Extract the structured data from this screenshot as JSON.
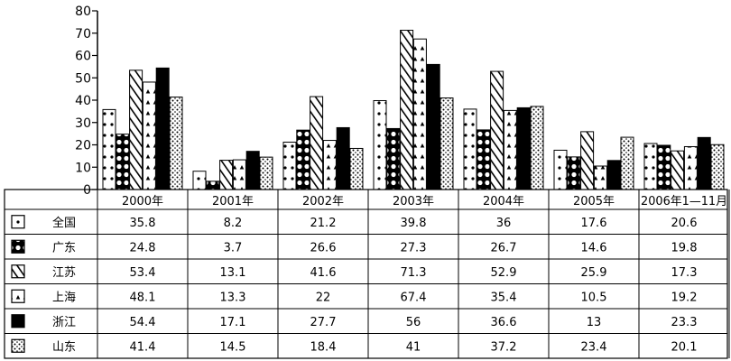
{
  "chart_data": {
    "type": "bar",
    "categories": [
      "2000年",
      "2001年",
      "2002年",
      "2003年",
      "2004年",
      "2005年",
      "2006年1—11月"
    ],
    "ylim": [
      0,
      80
    ],
    "yticks": [
      0,
      10,
      20,
      30,
      40,
      50,
      60,
      70,
      80
    ],
    "grid": false,
    "legend": "data-table-below",
    "series": [
      {
        "name": "全国",
        "pattern": "dots-sparse",
        "color": "#000000",
        "values": [
          35.8,
          8.2,
          21.2,
          39.8,
          36,
          17.6,
          20.6
        ]
      },
      {
        "name": "广东",
        "pattern": "big-dots",
        "color": "#000000",
        "values": [
          24.8,
          3.7,
          26.6,
          27.3,
          26.7,
          14.6,
          19.8
        ]
      },
      {
        "name": "江苏",
        "pattern": "diagonal",
        "color": "#000000",
        "values": [
          53.4,
          13.1,
          41.6,
          71.3,
          52.9,
          25.9,
          17.3
        ]
      },
      {
        "name": "上海",
        "pattern": "triangles",
        "color": "#000000",
        "values": [
          48.1,
          13.3,
          22,
          67.4,
          35.4,
          10.5,
          19.2
        ]
      },
      {
        "name": "浙江",
        "pattern": "solid",
        "color": "#000000",
        "values": [
          54.4,
          17.1,
          27.7,
          56,
          36.6,
          13,
          23.3
        ]
      },
      {
        "name": "山东",
        "pattern": "dots-dense",
        "color": "#000000",
        "values": [
          41.4,
          14.5,
          18.4,
          41,
          37.2,
          23.4,
          20.1
        ]
      }
    ],
    "table_values": [
      [
        "35.8",
        "8.2",
        "21.2",
        "39.8",
        "36",
        "17.6",
        "20.6"
      ],
      [
        "24.8",
        "3.7",
        "26.6",
        "27.3",
        "26.7",
        "14.6",
        "19.8"
      ],
      [
        "53.4",
        "13.1",
        "41.6",
        "71.3",
        "52.9",
        "25.9",
        "17.3"
      ],
      [
        "48.1",
        "13.3",
        "22",
        "67.4",
        "35.4",
        "10.5",
        "19.2"
      ],
      [
        "54.4",
        "17.1",
        "27.7",
        "56",
        "36.6",
        "13",
        "23.3"
      ],
      [
        "41.4",
        "14.5",
        "18.4",
        "41",
        "37.2",
        "23.4",
        "20.1"
      ]
    ]
  }
}
